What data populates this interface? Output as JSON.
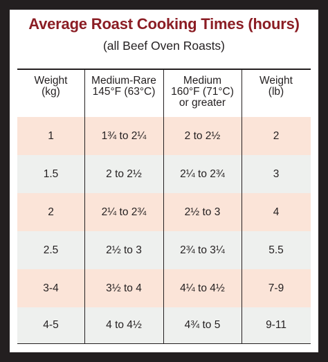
{
  "title": "Average Roast Cooking Times (hours)",
  "subtitle": "(all Beef Oven Roasts)",
  "colors": {
    "title": "#8b1d24",
    "border": "#231f20",
    "row_shade_a": "#fbe4d8",
    "row_shade_b": "#eef0ee"
  },
  "columns": [
    {
      "lines": [
        "Weight",
        "(kg)"
      ]
    },
    {
      "lines": [
        "Medium-Rare",
        "145°F (63°C)"
      ]
    },
    {
      "lines": [
        "Medium",
        "160°F (71°C)",
        "or greater"
      ]
    },
    {
      "lines": [
        "Weight",
        "(lb)"
      ]
    }
  ],
  "rows": [
    [
      "1",
      "1¾ to 2¼",
      "2 to 2½",
      "2"
    ],
    [
      "1.5",
      "2 to 2½",
      "2¼ to 2¾",
      "3"
    ],
    [
      "2",
      "2¼ to 2¾",
      "2½ to 3",
      "4"
    ],
    [
      "2.5",
      "2½ to 3",
      "2¾ to 3¼",
      "5.5"
    ],
    [
      "3-4",
      "3½ to 4",
      "4¼ to 4½",
      "7-9"
    ],
    [
      "4-5",
      "4 to 4½",
      "4¾ to 5",
      "9-11"
    ]
  ]
}
